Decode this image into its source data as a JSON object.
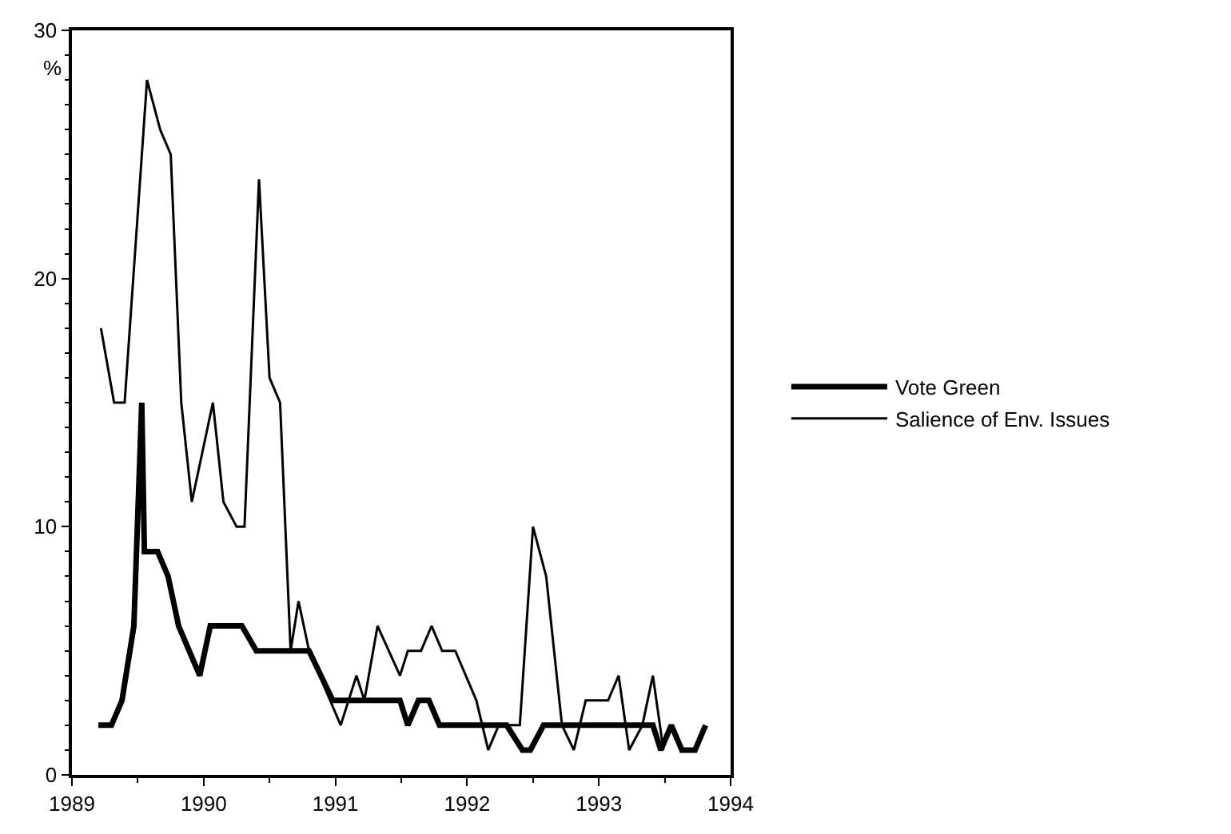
{
  "chart_data": {
    "type": "line",
    "ylabel": "%",
    "xlim": [
      1989,
      1994
    ],
    "xticks": [
      1989,
      1990,
      1991,
      1992,
      1993,
      1994
    ],
    "ylim": [
      0,
      30
    ],
    "yticks": [
      0,
      10,
      20,
      30
    ],
    "legend": "right",
    "marker": "none",
    "line_style": "solid",
    "series": [
      {
        "name": "Vote Green",
        "color": "#000000",
        "x": [
          1989.2,
          1989.3,
          1989.38,
          1989.47,
          1989.53,
          1989.55,
          1989.65,
          1989.73,
          1989.81,
          1989.97,
          1990.05,
          1990.29,
          1990.4,
          1990.8,
          1990.98,
          1991.49,
          1991.55,
          1991.63,
          1991.71,
          1991.79,
          1992.3,
          1992.42,
          1992.48,
          1992.58,
          1993.41,
          1993.47,
          1993.55,
          1993.63,
          1993.73,
          1993.81
        ],
        "values": [
          2,
          2,
          3,
          6,
          15,
          9,
          9,
          8,
          6,
          4,
          6,
          6,
          5,
          5,
          3,
          3,
          2,
          3,
          3,
          2,
          2,
          1,
          1,
          2,
          2,
          1,
          2,
          1,
          1,
          2
        ]
      },
      {
        "name": "Salience of Env. Issues",
        "color": "#000000",
        "x": [
          1989.22,
          1989.32,
          1989.4,
          1989.57,
          1989.67,
          1989.75,
          1989.83,
          1989.91,
          1990.07,
          1990.15,
          1990.25,
          1990.31,
          1990.42,
          1990.5,
          1990.58,
          1990.66,
          1990.72,
          1990.8,
          1991.04,
          1991.16,
          1991.22,
          1991.32,
          1991.49,
          1991.55,
          1991.65,
          1991.73,
          1991.81,
          1991.91,
          1992.07,
          1992.16,
          1992.24,
          1992.4,
          1992.5,
          1992.6,
          1992.72,
          1992.81,
          1992.9,
          1993.07,
          1993.15,
          1993.23,
          1993.33,
          1993.41,
          1993.49
        ],
        "values": [
          18,
          15,
          15,
          28,
          26,
          25,
          15,
          11,
          15,
          11,
          10,
          10,
          24,
          16,
          15,
          5,
          7,
          5,
          2,
          4,
          3,
          6,
          4,
          5,
          5,
          6,
          5,
          5,
          3,
          1,
          2,
          2,
          10,
          8,
          2,
          1,
          3,
          3,
          4,
          1,
          2,
          4,
          1
        ]
      }
    ]
  }
}
